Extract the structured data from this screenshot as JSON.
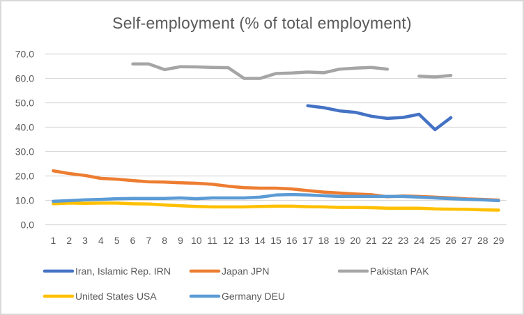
{
  "chart_data": {
    "type": "line",
    "title": "Self-employment  (% of total employment)",
    "xlabel": "",
    "ylabel": "",
    "ylim": [
      0,
      70
    ],
    "yticks": [
      "0.0",
      "10.0",
      "20.0",
      "30.0",
      "40.0",
      "50.0",
      "60.0",
      "70.0"
    ],
    "ytick_values": [
      0,
      10,
      20,
      30,
      40,
      50,
      60,
      70
    ],
    "grid": true,
    "legend_position": "bottom",
    "categories": [
      "1",
      "2",
      "3",
      "4",
      "5",
      "6",
      "7",
      "8",
      "9",
      "10",
      "11",
      "12",
      "13",
      "14",
      "15",
      "16",
      "17",
      "18",
      "19",
      "20",
      "21",
      "22",
      "23",
      "24",
      "25",
      "26",
      "27",
      "28",
      "29"
    ],
    "series": [
      {
        "name": "Iran, Islamic Rep. IRN",
        "color": "#4472c4",
        "values": [
          null,
          null,
          null,
          null,
          null,
          null,
          null,
          null,
          null,
          null,
          null,
          null,
          null,
          null,
          null,
          null,
          48.8,
          48.0,
          46.7,
          46.1,
          44.5,
          43.6,
          44.0,
          45.3,
          39.0,
          43.9,
          null,
          null,
          null
        ]
      },
      {
        "name": "Japan JPN",
        "color": "#ed7d31",
        "values": [
          22.1,
          21.0,
          20.2,
          19.0,
          18.7,
          18.1,
          17.6,
          17.5,
          17.2,
          17.0,
          16.6,
          15.8,
          15.2,
          15.0,
          15.0,
          14.7,
          14.0,
          13.4,
          13.0,
          12.6,
          12.3,
          11.5,
          11.8,
          11.6,
          11.3,
          11.0,
          10.6,
          10.4,
          10.1
        ]
      },
      {
        "name": "Pakistan PAK",
        "color": "#a5a5a5",
        "values": [
          null,
          null,
          null,
          null,
          null,
          65.9,
          65.9,
          63.6,
          64.8,
          64.7,
          64.5,
          64.4,
          60.0,
          60.0,
          62.0,
          62.2,
          62.6,
          62.3,
          63.8,
          64.2,
          64.5,
          63.8,
          null,
          60.9,
          60.6,
          61.2,
          null,
          null,
          null
        ]
      },
      {
        "name": "United States USA",
        "color": "#ffc000",
        "values": [
          8.6,
          8.9,
          8.8,
          8.9,
          8.9,
          8.6,
          8.5,
          8.1,
          7.8,
          7.5,
          7.3,
          7.3,
          7.3,
          7.5,
          7.6,
          7.6,
          7.4,
          7.3,
          7.1,
          7.1,
          7.0,
          6.8,
          6.8,
          6.8,
          6.5,
          6.4,
          6.3,
          6.1,
          6.0
        ]
      },
      {
        "name": "Germany DEU",
        "color": "#5b9bd5",
        "values": [
          9.6,
          9.9,
          10.2,
          10.4,
          10.7,
          10.8,
          10.8,
          10.8,
          11.0,
          10.7,
          11.0,
          11.0,
          11.0,
          11.3,
          12.2,
          12.4,
          12.2,
          11.9,
          11.6,
          11.6,
          11.6,
          11.6,
          11.6,
          11.3,
          11.0,
          10.7,
          10.4,
          10.2,
          9.9
        ]
      }
    ]
  }
}
